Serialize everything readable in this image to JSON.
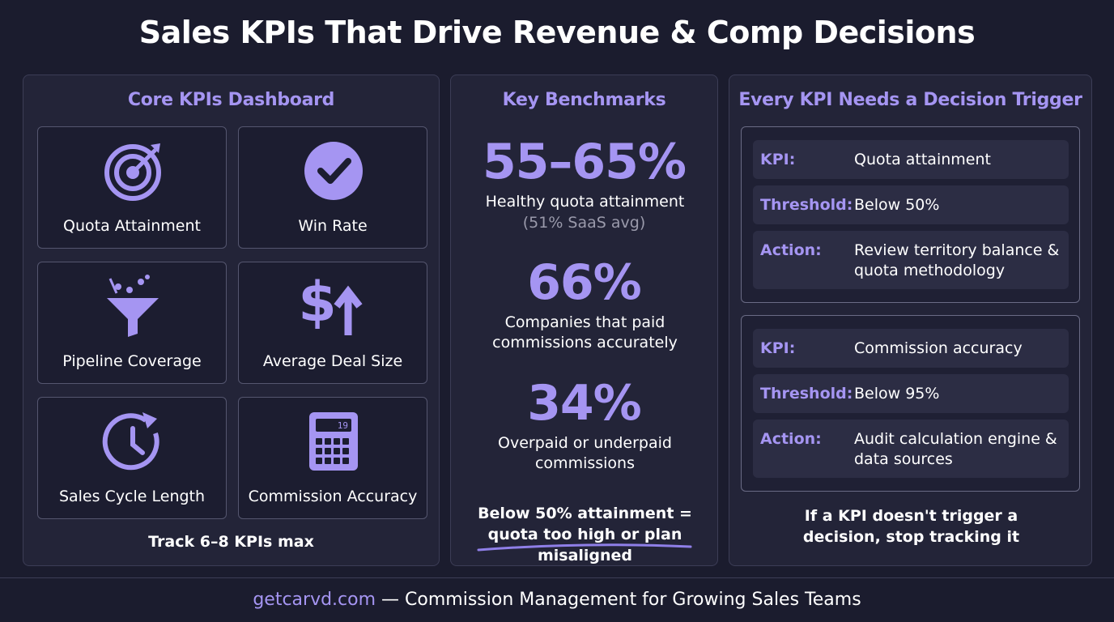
{
  "title": "Sales KPIs That Drive Revenue & Comp Decisions",
  "dashboard": {
    "title": "Core KPIs Dashboard",
    "tiles": [
      "Quota Attainment",
      "Win Rate",
      "Pipeline Coverage",
      "Average Deal Size",
      "Sales Cycle Length",
      "Commission Accuracy"
    ],
    "calculator_display": "19",
    "note": "Track 6–8 KPIs max"
  },
  "benchmarks": {
    "title": "Key Benchmarks",
    "items": [
      {
        "value": "55–65%",
        "label": "Healthy quota attainment",
        "sublabel": "(51% SaaS avg)"
      },
      {
        "value": "66%",
        "label": "Companies that paid commissions accurately"
      },
      {
        "value": "34%",
        "label": "Overpaid or underpaid commissions"
      }
    ],
    "note": "Below 50% attainment = quota too high or plan misaligned"
  },
  "triggers": {
    "title": "Every KPI Needs a Decision Trigger",
    "cards": [
      {
        "rows": [
          {
            "key": "KPI:",
            "value": "Quota attainment"
          },
          {
            "key": "Threshold:",
            "value": "Below 50%"
          },
          {
            "key": "Action:",
            "value": "Review territory balance & quota methodology"
          }
        ]
      },
      {
        "rows": [
          {
            "key": "KPI:",
            "value": "Commission accuracy"
          },
          {
            "key": "Threshold:",
            "value": "Below 95%"
          },
          {
            "key": "Action:",
            "value": "Audit calculation engine & data sources"
          }
        ]
      }
    ],
    "note": "If a KPI doesn't trigger a decision, stop tracking it"
  },
  "footer": {
    "site": "getcarvd.com",
    "text": "— Commission Management for Growing Sales Teams"
  }
}
